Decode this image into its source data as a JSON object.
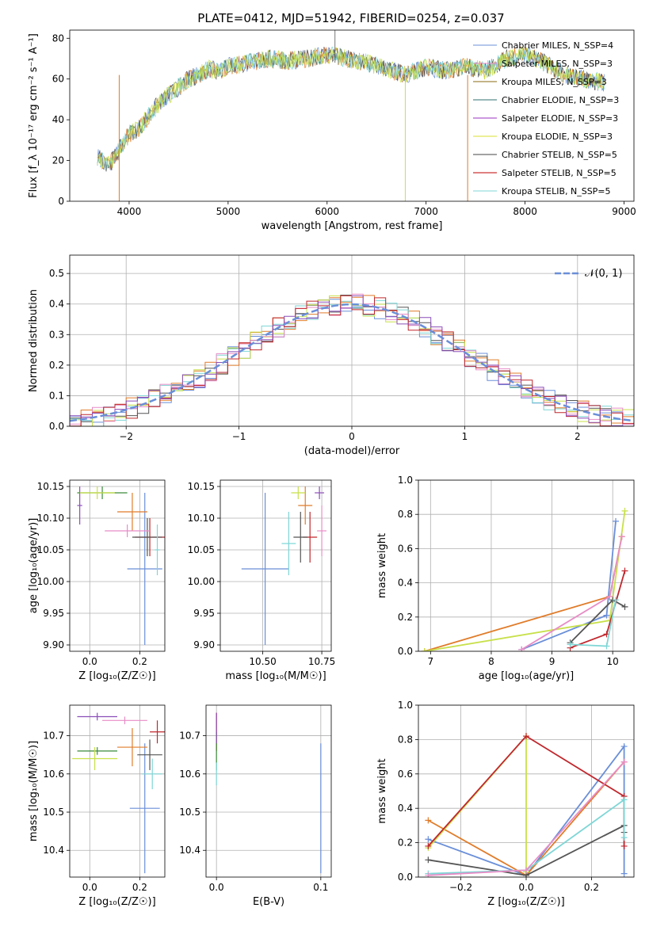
{
  "figure": {
    "title": "PLATE=0412, MJD=51942, FIBERID=0254, z=0.037"
  },
  "colors": [
    "#6a8fd8",
    "#e07c2a",
    "#3a8a3a",
    "#c0272d",
    "#8b4fb8",
    "#8b5a2b",
    "#e88cc6",
    "#555555",
    "#c8e04a",
    "#7fd6d6"
  ],
  "chart_data": [
    {
      "id": "spectrum",
      "type": "line",
      "xlabel": "wavelength [Angstrom, rest frame]",
      "ylabel": "Flux [f_λ 10⁻¹⁷ erg cm⁻² s⁻¹ A⁻¹]",
      "xlim": [
        3400,
        9100
      ],
      "ylim": [
        0,
        84
      ],
      "xticks": [
        4000,
        5000,
        6000,
        7000,
        8000,
        9000
      ],
      "yticks": [
        0,
        20,
        40,
        60,
        80
      ],
      "grid": false,
      "legend_position": "top-right",
      "legend": [
        {
          "text": "Chabrier MILES, N_SSP=4",
          "color": "#6a8fd8"
        },
        {
          "text": "Salpeter MILES, N_SSP=3",
          "color": "#e88cc6"
        },
        {
          "text": "Kroupa MILES, N_SSP=3",
          "color": "#8b6a10"
        },
        {
          "text": "Chabrier ELODIE, N_SSP=3",
          "color": "#2f6f6f"
        },
        {
          "text": "Salpeter ELODIE, N_SSP=3",
          "color": "#9b30c0"
        },
        {
          "text": "Kroupa ELODIE, N_SSP=3",
          "color": "#d8e030"
        },
        {
          "text": "Chabrier STELIB, N_SSP=5",
          "color": "#444444"
        },
        {
          "text": "Salpeter STELIB, N_SSP=5",
          "color": "#c00000"
        },
        {
          "text": "Kroupa STELIB, N_SSP=5",
          "color": "#7fd6d6"
        }
      ],
      "series_envelope": {
        "x": [
          3680,
          3800,
          3900,
          4000,
          4100,
          4200,
          4300,
          4400,
          4500,
          4600,
          4700,
          4800,
          4900,
          5000,
          5200,
          5400,
          5600,
          5800,
          6000,
          6200,
          6400,
          6600,
          6800,
          7000,
          7200,
          7400,
          7600,
          7800,
          8000,
          8200,
          8400,
          8600,
          8800
        ],
        "y": [
          22,
          18,
          25,
          33,
          36,
          42,
          48,
          52,
          56,
          60,
          62,
          65,
          64,
          66,
          68,
          70,
          69,
          70,
          72,
          70,
          68,
          65,
          62,
          66,
          64,
          66,
          64,
          70,
          72,
          68,
          62,
          60,
          58
        ]
      },
      "line_colors": [
        "#6a8fd8",
        "#e07c2a",
        "#555555",
        "#7fd6d6",
        "#c8e04a"
      ]
    },
    {
      "id": "residuals",
      "type": "bar",
      "xlabel": "(data-model)/error",
      "ylabel": "Normed distribution",
      "xlim": [
        -2.5,
        2.5
      ],
      "ylim": [
        0,
        0.56
      ],
      "xticks": [
        -2,
        -1,
        0,
        1,
        2
      ],
      "yticks": [
        0.0,
        0.1,
        0.2,
        0.3,
        0.4,
        0.5
      ],
      "grid": true,
      "legend_position": "top-right",
      "legend": [
        {
          "text": "𝒩(0, 1)",
          "color": "#6a8fd8"
        }
      ],
      "bin_width": 0.1,
      "hist_colors": [
        "#6a8fd8",
        "#e07c2a",
        "#555555",
        "#7fd6d6",
        "#c8e04a",
        "#e88cc6",
        "#c0272d",
        "#8b4fb8"
      ]
    },
    {
      "id": "age-vs-Z",
      "type": "scatter",
      "xlabel": "Z [log₁₀(Z/Z☉)]",
      "ylabel": "age  [log₁₀(age/yr)]",
      "xlim": [
        -0.08,
        0.3
      ],
      "ylim": [
        9.89,
        10.16
      ],
      "xticks": [
        0.0,
        0.2
      ],
      "yticks": [
        9.9,
        9.95,
        10.0,
        10.05,
        10.1,
        10.15
      ],
      "grid": true,
      "points": [
        {
          "x": 0.22,
          "y": 10.02,
          "xerr": 0.07,
          "yerr": 0.12,
          "color": "#6a8fd8"
        },
        {
          "x": 0.17,
          "y": 10.11,
          "xerr": 0.06,
          "yerr": 0.03,
          "color": "#e07c2a"
        },
        {
          "x": 0.05,
          "y": 10.14,
          "xerr": 0.1,
          "yerr": 0.01,
          "color": "#3a8a3a"
        },
        {
          "x": 0.24,
          "y": 10.07,
          "xerr": 0.06,
          "yerr": 0.03,
          "color": "#c0272d"
        },
        {
          "x": 0.23,
          "y": 10.07,
          "xerr": 0.06,
          "yerr": 0.03,
          "color": "#555555"
        },
        {
          "x": 0.15,
          "y": 10.08,
          "xerr": 0.09,
          "yerr": 0.01,
          "color": "#e88cc6"
        },
        {
          "x": -0.04,
          "y": 10.12,
          "xerr": 0.01,
          "yerr": 0.03,
          "color": "#8b4fb8"
        },
        {
          "x": 0.03,
          "y": 10.14,
          "xerr": 0.07,
          "yerr": 0.01,
          "color": "#c8e04a"
        },
        {
          "x": 0.27,
          "y": 10.05,
          "xerr": 0.01,
          "yerr": 0.04,
          "color": "#7fd6d6"
        }
      ]
    },
    {
      "id": "age-vs-mass",
      "type": "scatter",
      "xlabel": "mass [log₁₀(M/M☉)]",
      "ylabel": "",
      "xlim": [
        10.32,
        10.79
      ],
      "ylim": [
        9.89,
        10.16
      ],
      "xticks": [
        10.5,
        10.75
      ],
      "yticks": [
        9.9,
        9.95,
        10.0,
        10.05,
        10.1,
        10.15
      ],
      "grid": true,
      "points": [
        {
          "x": 10.51,
          "y": 10.02,
          "xerr": 0.1,
          "yerr": 0.12,
          "color": "#6a8fd8"
        },
        {
          "x": 10.68,
          "y": 10.12,
          "xerr": 0.03,
          "yerr": 0.03,
          "color": "#e07c2a"
        },
        {
          "x": 10.7,
          "y": 10.07,
          "xerr": 0.03,
          "yerr": 0.04,
          "color": "#c0272d"
        },
        {
          "x": 10.66,
          "y": 10.07,
          "xerr": 0.03,
          "yerr": 0.04,
          "color": "#555555"
        },
        {
          "x": 10.61,
          "y": 10.06,
          "xerr": 0.03,
          "yerr": 0.05,
          "color": "#7fd6d6"
        },
        {
          "x": 10.74,
          "y": 10.14,
          "xerr": 0.02,
          "yerr": 0.01,
          "color": "#8b4fb8"
        },
        {
          "x": 10.75,
          "y": 10.08,
          "xerr": 0.02,
          "yerr": 0.04,
          "color": "#e88cc6"
        },
        {
          "x": 10.65,
          "y": 10.14,
          "xerr": 0.03,
          "yerr": 0.01,
          "color": "#c8e04a"
        }
      ]
    },
    {
      "id": "weight-vs-age",
      "type": "line",
      "xlabel": "age  [log₁₀(age/yr)]",
      "ylabel": "mass weight",
      "xlim": [
        6.8,
        10.35
      ],
      "ylim": [
        0,
        1.0
      ],
      "xticks": [
        7,
        8,
        9,
        10
      ],
      "yticks": [
        0.0,
        0.2,
        0.4,
        0.6,
        0.8,
        1.0
      ],
      "grid": true,
      "series": [
        {
          "x": [
            8.5,
            9.9,
            10.05
          ],
          "y": [
            0.01,
            0.21,
            0.76
          ],
          "color": "#6a8fd8"
        },
        {
          "x": [
            6.9,
            9.95,
            10.15
          ],
          "y": [
            0.0,
            0.32,
            0.67
          ],
          "color": "#e07c2a"
        },
        {
          "x": [
            6.9,
            9.95,
            10.2
          ],
          "y": [
            0.0,
            0.18,
            0.82
          ],
          "color": "#c8e04a"
        },
        {
          "x": [
            9.3,
            9.9,
            10.2
          ],
          "y": [
            0.02,
            0.1,
            0.47
          ],
          "color": "#c0272d"
        },
        {
          "x": [
            9.3,
            10.0,
            10.2
          ],
          "y": [
            0.05,
            0.3,
            0.26
          ],
          "color": "#555555"
        },
        {
          "x": [
            9.3,
            9.9,
            10.05
          ],
          "y": [
            0.04,
            0.03,
            0.3
          ],
          "color": "#7fd6d6"
        },
        {
          "x": [
            8.5,
            9.95,
            10.15
          ],
          "y": [
            0.01,
            0.32,
            0.67
          ],
          "color": "#e88cc6"
        }
      ]
    },
    {
      "id": "mass-vs-Z",
      "type": "scatter",
      "xlabel": "Z [log₁₀(Z/Z☉)]",
      "ylabel": "mass [log₁₀(M/M☉)]",
      "xlim": [
        -0.08,
        0.3
      ],
      "ylim": [
        10.33,
        10.78
      ],
      "xticks": [
        0.0,
        0.2
      ],
      "yticks": [
        10.4,
        10.5,
        10.6,
        10.7
      ],
      "grid": true,
      "points": [
        {
          "x": 0.22,
          "y": 10.51,
          "xerr": 0.06,
          "yerr": 0.17,
          "color": "#6a8fd8"
        },
        {
          "x": 0.17,
          "y": 10.67,
          "xerr": 0.06,
          "yerr": 0.05,
          "color": "#e07c2a"
        },
        {
          "x": 0.03,
          "y": 10.66,
          "xerr": 0.08,
          "yerr": 0.01,
          "color": "#3a8a3a"
        },
        {
          "x": 0.27,
          "y": 10.71,
          "xerr": 0.03,
          "yerr": 0.03,
          "color": "#c0272d"
        },
        {
          "x": 0.24,
          "y": 10.65,
          "xerr": 0.05,
          "yerr": 0.04,
          "color": "#555555"
        },
        {
          "x": 0.14,
          "y": 10.74,
          "xerr": 0.09,
          "yerr": 0.01,
          "color": "#e88cc6"
        },
        {
          "x": 0.03,
          "y": 10.75,
          "xerr": 0.08,
          "yerr": 0.01,
          "color": "#8b4fb8"
        },
        {
          "x": 0.02,
          "y": 10.64,
          "xerr": 0.09,
          "yerr": 0.03,
          "color": "#c8e04a"
        },
        {
          "x": 0.25,
          "y": 10.6,
          "xerr": 0.04,
          "yerr": 0.04,
          "color": "#7fd6d6"
        }
      ]
    },
    {
      "id": "mass-vs-EBV",
      "type": "scatter",
      "xlabel": "E(B-V)",
      "ylabel": "",
      "xlim": [
        -0.01,
        0.11
      ],
      "ylim": [
        10.33,
        10.78
      ],
      "xticks": [
        0.0,
        0.1
      ],
      "yticks": [
        10.4,
        10.5,
        10.6,
        10.7
      ],
      "grid": true,
      "points": [
        {
          "x": 0.1,
          "y": 10.51,
          "xerr": 0.0,
          "yerr": 0.17,
          "color": "#6a8fd8"
        },
        {
          "x": 0.0,
          "y": 10.71,
          "xerr": 0.0,
          "yerr": 0.05,
          "color": "#c0272d"
        },
        {
          "x": 0.0,
          "y": 10.66,
          "xerr": 0.0,
          "yerr": 0.05,
          "color": "#3a8a3a"
        },
        {
          "x": 0.0,
          "y": 10.72,
          "xerr": 0.0,
          "yerr": 0.04,
          "color": "#8b4fb8"
        },
        {
          "x": 0.0,
          "y": 10.6,
          "xerr": 0.0,
          "yerr": 0.03,
          "color": "#7fd6d6"
        }
      ]
    },
    {
      "id": "weight-vs-Z",
      "type": "line",
      "xlabel": "Z [log₁₀(Z/Z☉)]",
      "ylabel": "mass weight",
      "xlim": [
        -0.33,
        0.33
      ],
      "ylim": [
        0,
        1.0
      ],
      "xticks": [
        -0.2,
        0.0,
        0.2
      ],
      "yticks": [
        0.0,
        0.2,
        0.4,
        0.6,
        0.8,
        1.0
      ],
      "grid": true,
      "series": [
        {
          "x": [
            -0.3,
            0.0,
            0.3,
            0.3
          ],
          "y": [
            0.22,
            0.01,
            0.76,
            0.02
          ],
          "color": "#6a8fd8"
        },
        {
          "x": [
            -0.3,
            0.0,
            0.3
          ],
          "y": [
            0.33,
            0.01,
            0.67
          ],
          "color": "#e07c2a"
        },
        {
          "x": [
            -0.3,
            0.0,
            0.0
          ],
          "y": [
            0.17,
            0.82,
            0.03
          ],
          "color": "#c8e04a"
        },
        {
          "x": [
            -0.3,
            0.0,
            0.3,
            0.3
          ],
          "y": [
            0.18,
            0.82,
            0.47,
            0.18
          ],
          "color": "#c0272d"
        },
        {
          "x": [
            -0.3,
            0.0,
            0.3,
            0.3
          ],
          "y": [
            0.1,
            0.01,
            0.3,
            0.26
          ],
          "color": "#555555"
        },
        {
          "x": [
            -0.3,
            0.0,
            0.3,
            0.3
          ],
          "y": [
            0.02,
            0.04,
            0.45,
            0.23
          ],
          "color": "#7fd6d6"
        },
        {
          "x": [
            -0.3,
            0.0,
            0.3
          ],
          "y": [
            0.01,
            0.04,
            0.67
          ],
          "color": "#e88cc6"
        }
      ]
    }
  ]
}
